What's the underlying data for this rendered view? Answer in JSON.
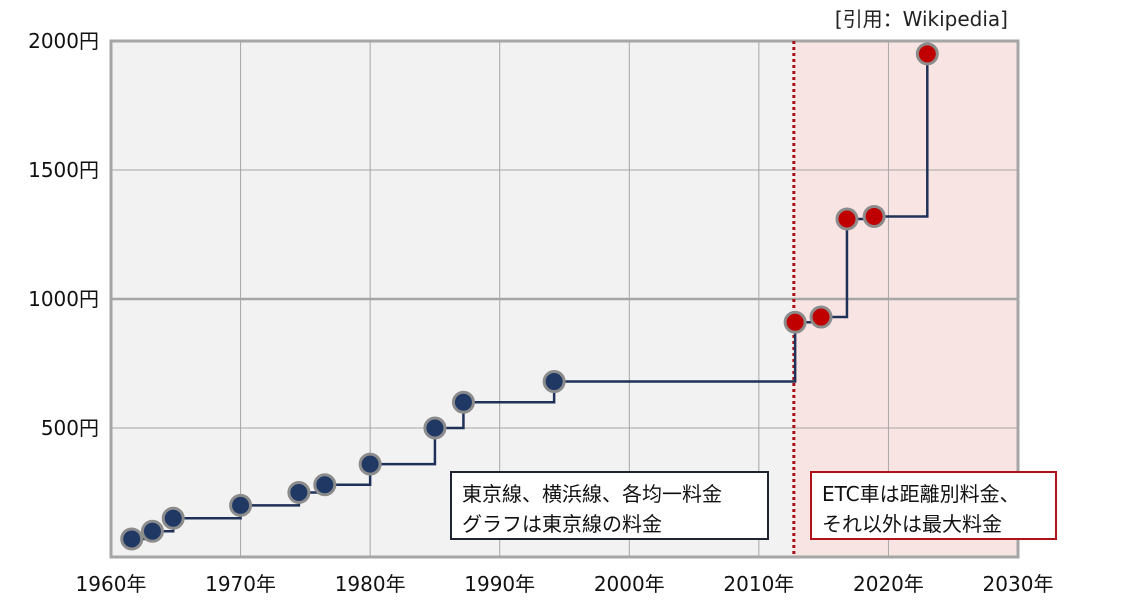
{
  "source_note": "[引用：Wikipedia]",
  "colors": {
    "plot_background": "#f2f2f2",
    "etc_region": "#f9e4e4",
    "grid": "#a6a6a6",
    "frame": "#a6a6a6",
    "line": "#1f3158",
    "point_blue": "#1f3864",
    "point_red": "#c00000",
    "point_stroke": "#8c8c8c",
    "divider": "#a50f15",
    "note_left_border": "#1f2433",
    "note_right_border": "#b0121b"
  },
  "notes": {
    "left": [
      "東京線、横浜線、各均一料金",
      "グラフは東京線の料金"
    ],
    "right": [
      "ETC車は距離別料金、",
      "それ以外は最大料金"
    ]
  },
  "chart_data": {
    "type": "line",
    "step": true,
    "title": "",
    "xlabel": "",
    "ylabel": "",
    "xlim": [
      1960,
      2030
    ],
    "ylim": [
      0,
      2000
    ],
    "x_ticks": [
      1960,
      1970,
      1980,
      1990,
      2000,
      2010,
      2020,
      2030
    ],
    "x_tick_labels": [
      "1960年",
      "1970年",
      "1980年",
      "1990年",
      "2000年",
      "2010年",
      "2020年",
      "2030年"
    ],
    "y_ticks": [
      500,
      1000,
      1500,
      2000
    ],
    "y_tick_labels": [
      "500円",
      "1000円",
      "1500円",
      "2000円"
    ],
    "grid": true,
    "divider_x": 2012.7,
    "series": [
      {
        "points": [
          {
            "x": 1961.6,
            "y": 70,
            "color": "blue"
          },
          {
            "x": 1963.2,
            "y": 100,
            "color": "blue"
          },
          {
            "x": 1964.8,
            "y": 150,
            "color": "blue"
          },
          {
            "x": 1970.0,
            "y": 200,
            "color": "blue"
          },
          {
            "x": 1974.5,
            "y": 250,
            "color": "blue"
          },
          {
            "x": 1976.5,
            "y": 280,
            "color": "blue"
          },
          {
            "x": 1980.0,
            "y": 360,
            "color": "blue"
          },
          {
            "x": 1985.0,
            "y": 500,
            "color": "blue"
          },
          {
            "x": 1987.2,
            "y": 600,
            "color": "blue"
          },
          {
            "x": 1994.2,
            "y": 680,
            "color": "blue"
          },
          {
            "x": 2012.8,
            "y": 910,
            "color": "red"
          },
          {
            "x": 2014.8,
            "y": 930,
            "color": "red"
          },
          {
            "x": 2016.8,
            "y": 1310,
            "color": "red"
          },
          {
            "x": 2018.9,
            "y": 1320,
            "color": "red"
          },
          {
            "x": 2023.0,
            "y": 1950,
            "color": "red"
          }
        ]
      }
    ]
  }
}
